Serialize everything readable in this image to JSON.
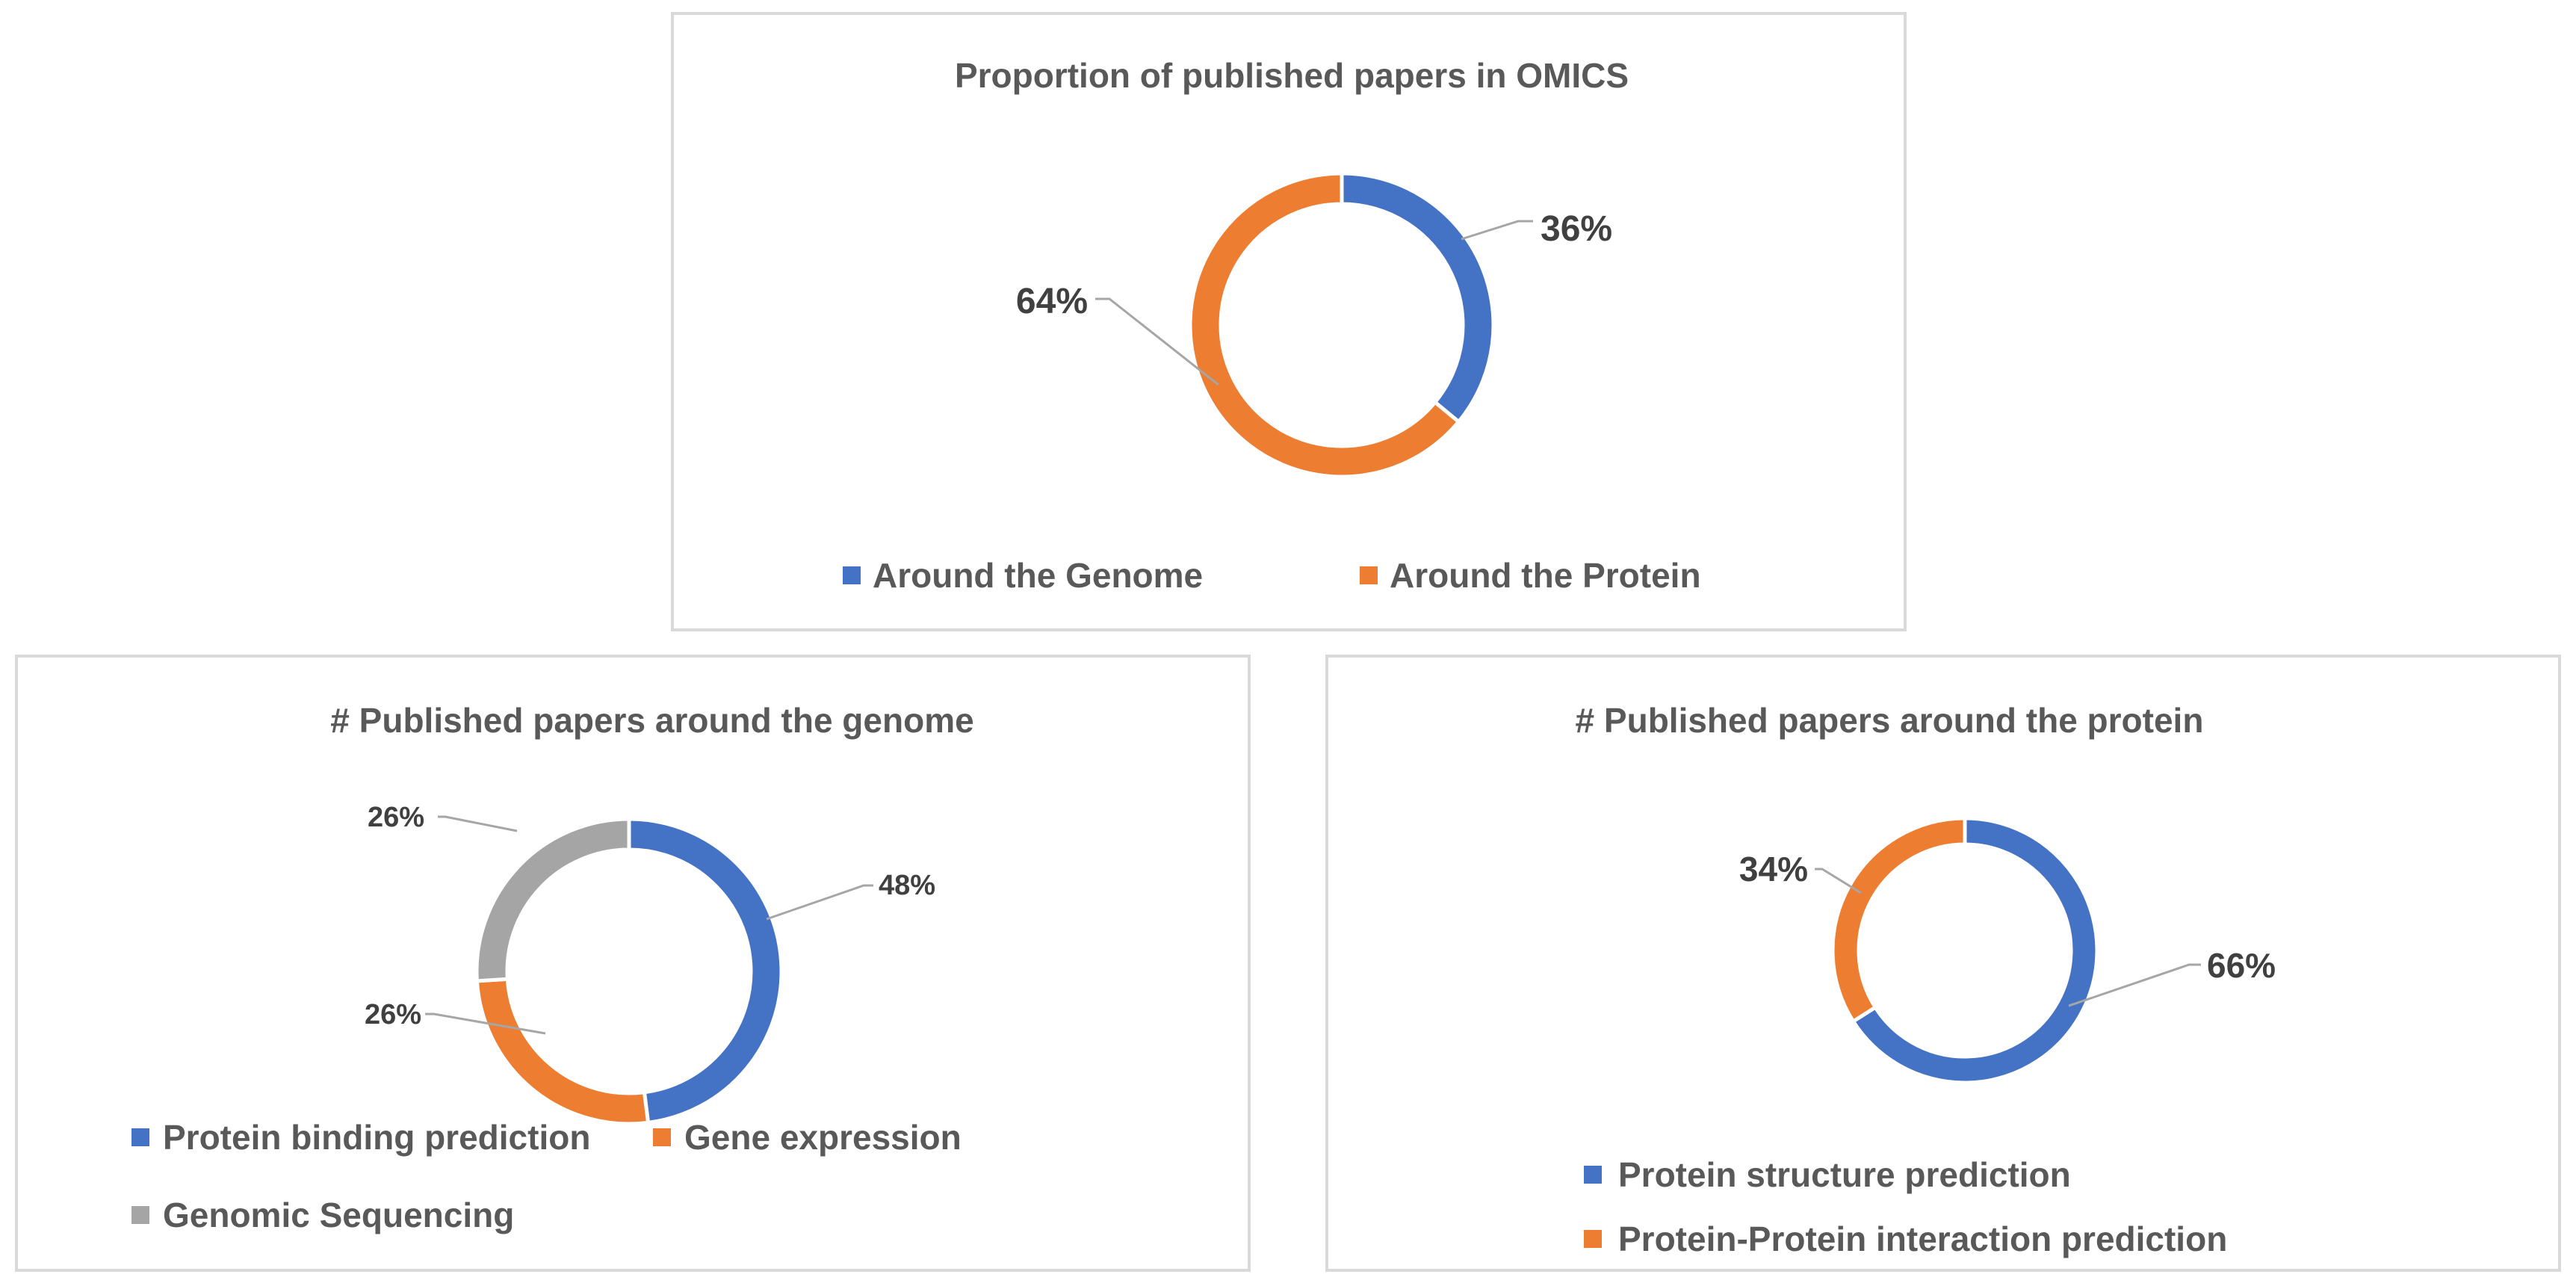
{
  "chart_data": [
    {
      "type": "pie",
      "variant": "doughnut",
      "title": "Proportion of published papers in OMICS",
      "series": [
        {
          "name": "Around the Genome",
          "value": 36,
          "label": "36%",
          "color": "#4472c4"
        },
        {
          "name": "Around the Protein",
          "value": 64,
          "label": "64%",
          "color": "#ed7d31"
        }
      ],
      "legend": "bottom"
    },
    {
      "type": "pie",
      "variant": "doughnut",
      "title": "# Published papers around the genome",
      "series": [
        {
          "name": "Protein binding prediction",
          "value": 48,
          "label": "48%",
          "color": "#4472c4"
        },
        {
          "name": "Gene expression",
          "value": 26,
          "label": "26%",
          "color": "#ed7d31"
        },
        {
          "name": "Genomic Sequencing",
          "value": 26,
          "label": "26%",
          "color": "#a5a5a5"
        }
      ],
      "legend": "bottom"
    },
    {
      "type": "pie",
      "variant": "doughnut",
      "title": "# Published papers around the protein",
      "series": [
        {
          "name": "Protein structure prediction",
          "value": 66,
          "label": "66%",
          "color": "#4472c4"
        },
        {
          "name": "Protein-Protein interaction prediction",
          "value": 34,
          "label": "34%",
          "color": "#ed7d31"
        }
      ],
      "legend": "bottom"
    }
  ]
}
